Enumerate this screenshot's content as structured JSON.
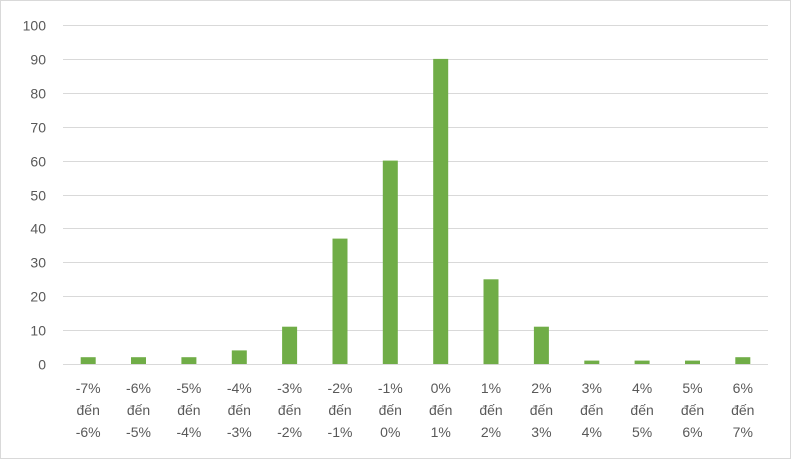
{
  "chart_data": {
    "type": "bar",
    "title": "",
    "xlabel": "",
    "ylabel": "",
    "ylim": [
      0,
      100
    ],
    "yticks": [
      0,
      10,
      20,
      30,
      40,
      50,
      60,
      70,
      80,
      90,
      100
    ],
    "grid": true,
    "legend": "none",
    "bar_color": "#70ad47",
    "categories": [
      [
        "-7%",
        "đến",
        "-6%"
      ],
      [
        "-6%",
        "đến",
        "-5%"
      ],
      [
        "-5%",
        "đến",
        "-4%"
      ],
      [
        "-4%",
        "đến",
        "-3%"
      ],
      [
        "-3%",
        "đến",
        "-2%"
      ],
      [
        "-2%",
        "đến",
        "-1%"
      ],
      [
        "-1%",
        "đến",
        "0%"
      ],
      [
        "0%",
        "đến",
        "1%"
      ],
      [
        "1%",
        "đến",
        "2%"
      ],
      [
        "2%",
        "đến",
        "3%"
      ],
      [
        "3%",
        "đến",
        "4%"
      ],
      [
        "4%",
        "đến",
        "5%"
      ],
      [
        "5%",
        "đến",
        "6%"
      ],
      [
        "6%",
        "đến",
        "7%"
      ]
    ],
    "values": [
      2,
      2,
      2,
      4,
      11,
      37,
      60,
      90,
      25,
      11,
      1,
      1,
      1,
      2
    ]
  }
}
